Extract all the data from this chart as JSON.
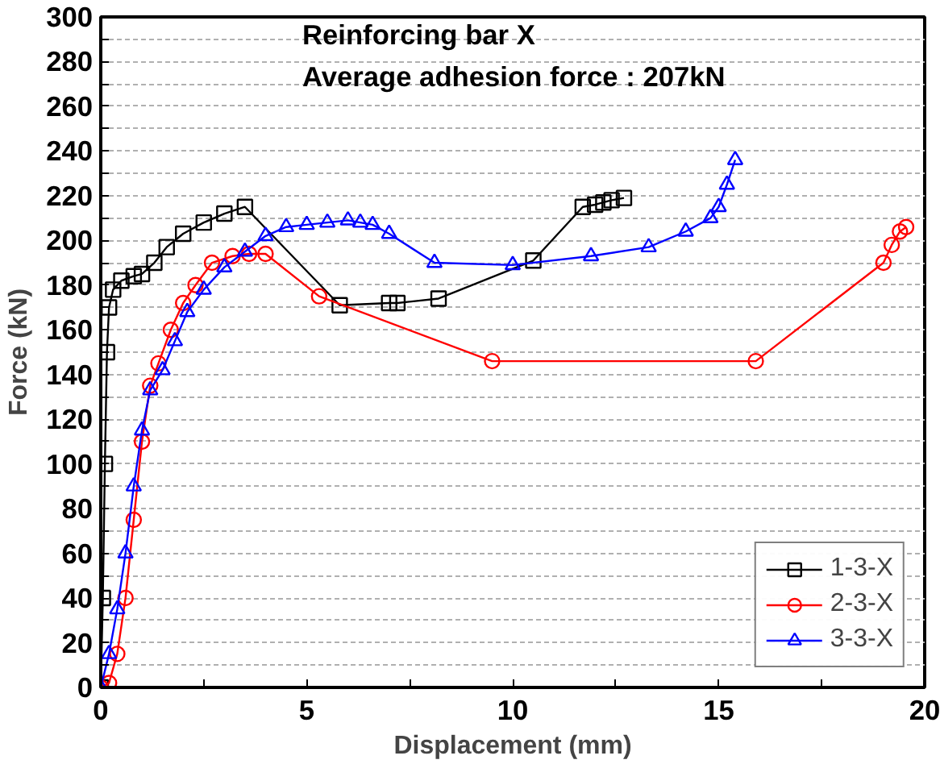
{
  "chart_data": {
    "type": "line",
    "xlabel": "Displacement (mm)",
    "ylabel": "Force (kN)",
    "annotations": [
      "Reinforcing bar X",
      "Average adhesion force : 207kN"
    ],
    "xlim": [
      0,
      20
    ],
    "ylim": [
      0,
      300
    ],
    "xticks": [
      0,
      {
        "value": 2.5,
        "label": null
      },
      5,
      {
        "value": 7.5,
        "label": null
      },
      10,
      {
        "value": 12.5,
        "label": null
      },
      15,
      {
        "value": 17.5,
        "label": null
      },
      20
    ],
    "yticks": [
      0,
      {
        "value": 10,
        "label": null
      },
      20,
      {
        "value": 30,
        "label": null
      },
      40,
      {
        "value": 50,
        "label": null
      },
      60,
      {
        "value": 70,
        "label": null
      },
      80,
      {
        "value": 90,
        "label": null
      },
      100,
      {
        "value": 110,
        "label": null
      },
      120,
      {
        "value": 130,
        "label": null
      },
      140,
      {
        "value": 150,
        "label": null
      },
      160,
      {
        "value": 170,
        "label": null
      },
      180,
      {
        "value": 190,
        "label": null
      },
      200,
      {
        "value": 210,
        "label": null
      },
      220,
      {
        "value": 230,
        "label": null
      },
      240,
      {
        "value": 250,
        "label": null
      },
      260,
      {
        "value": 270,
        "label": null
      },
      280,
      {
        "value": 290,
        "label": null
      },
      300
    ],
    "grid": "y",
    "legend": "bottom right",
    "series": [
      {
        "name": "1-3-X",
        "color": "#000000",
        "marker": "square",
        "x": [
          0,
          0.05,
          0.1,
          0.15,
          0.2,
          0.3,
          0.5,
          0.8,
          1.0,
          1.3,
          1.6,
          2.0,
          2.5,
          3.0,
          3.5,
          5.8,
          7.0,
          7.2,
          8.2,
          10.5,
          11.7,
          12.0,
          12.2,
          12.4,
          12.7
        ],
        "values": [
          0,
          40,
          100,
          150,
          170,
          178,
          182,
          184,
          185,
          190,
          197,
          203,
          208,
          212,
          215,
          171,
          172,
          172,
          174,
          191,
          215,
          216,
          217,
          218,
          219
        ]
      },
      {
        "name": "2-3-X",
        "color": "#ff0000",
        "marker": "circle",
        "x": [
          0,
          0.2,
          0.4,
          0.6,
          0.8,
          1.0,
          1.2,
          1.4,
          1.7,
          2.0,
          2.3,
          2.7,
          3.2,
          3.6,
          4.0,
          5.3,
          9.5,
          15.9,
          19.0,
          19.2,
          19.4,
          19.55
        ],
        "values": [
          0,
          2,
          15,
          40,
          75,
          110,
          135,
          145,
          160,
          172,
          180,
          190,
          193,
          194,
          194,
          175,
          146,
          146,
          190,
          198,
          204,
          206
        ]
      },
      {
        "name": "3-3-X",
        "color": "#0000ff",
        "marker": "triangle",
        "x": [
          0,
          0.2,
          0.4,
          0.6,
          0.8,
          1.0,
          1.2,
          1.5,
          1.8,
          2.1,
          2.5,
          3.0,
          3.5,
          4.0,
          4.5,
          5.0,
          5.5,
          6.0,
          6.3,
          6.6,
          7.0,
          8.1,
          10.0,
          11.9,
          13.3,
          14.2,
          14.8,
          15.0,
          15.2,
          15.4
        ],
        "values": [
          0,
          15,
          35,
          60,
          90,
          115,
          133,
          142,
          155,
          168,
          178,
          188,
          195,
          202,
          206,
          207,
          208,
          209,
          208,
          207,
          203,
          190,
          189,
          193,
          197,
          204,
          210,
          215,
          225,
          236
        ]
      }
    ]
  }
}
